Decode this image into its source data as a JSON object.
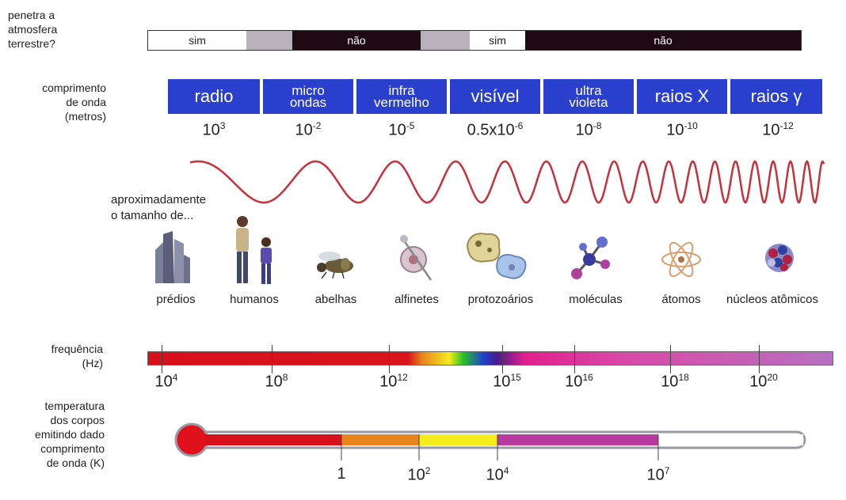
{
  "atmosphere": {
    "label_lines": [
      "penetra a",
      "atmosfera",
      "terrestre?"
    ],
    "segments": [
      {
        "text": "sim",
        "color": "#ffffff",
        "text_color": "#222222"
      },
      {
        "text": "",
        "color": "#b8b0ba",
        "text_color": "#222222"
      },
      {
        "text": "não",
        "color": "#1e0a12",
        "text_color": "#ffffff"
      },
      {
        "text": "",
        "color": "#b8b0ba",
        "text_color": "#222222"
      },
      {
        "text": "sim",
        "color": "#ffffff",
        "text_color": "#222222"
      },
      {
        "text": "não",
        "color": "#1e0a12",
        "text_color": "#ffffff"
      }
    ]
  },
  "wavelength": {
    "label_lines": [
      "comprimento",
      "de onda",
      "(metros)"
    ],
    "bands": [
      {
        "lines": [
          "radio"
        ]
      },
      {
        "lines": [
          "micro",
          "ondas"
        ]
      },
      {
        "lines": [
          "infra",
          "vermelho"
        ]
      },
      {
        "lines": [
          "visível"
        ]
      },
      {
        "lines": [
          "ultra",
          "violeta"
        ]
      },
      {
        "lines": [
          "raios X"
        ]
      },
      {
        "lines": [
          "raios γ"
        ]
      }
    ],
    "values": [
      {
        "base": "10",
        "exp": "3"
      },
      {
        "base": "10",
        "exp": "-2"
      },
      {
        "base": "10",
        "exp": "-5"
      },
      {
        "base": "0.5x10",
        "exp": "-6"
      },
      {
        "base": "10",
        "exp": "-8"
      },
      {
        "base": "10",
        "exp": "-10"
      },
      {
        "base": "10",
        "exp": "-12"
      }
    ],
    "band_color": "#2b3fcf",
    "wave_color": "#c8303a"
  },
  "size": {
    "label_lines": [
      "aproximadamente",
      "o tamanho de..."
    ],
    "objects": [
      {
        "label": "prédios",
        "icon": "buildings-icon"
      },
      {
        "label": "humanos",
        "icon": "humans-icon"
      },
      {
        "label": "abelhas",
        "icon": "bee-icon"
      },
      {
        "label": "alfinetes",
        "icon": "pin-icon"
      },
      {
        "label": "protozoários",
        "icon": "protozoa-icon"
      },
      {
        "label": "moléculas",
        "icon": "molecule-icon"
      },
      {
        "label": "átomos",
        "icon": "atom-icon"
      },
      {
        "label": "núcleos atômicos",
        "icon": "nucleus-icon"
      }
    ]
  },
  "frequency": {
    "label_lines": [
      "frequência",
      "(Hz)"
    ],
    "ticks": [
      {
        "base": "10",
        "exp": "4"
      },
      {
        "base": "10",
        "exp": "8"
      },
      {
        "base": "10",
        "exp": "12"
      },
      {
        "base": "10",
        "exp": "15"
      },
      {
        "base": "10",
        "exp": "16"
      },
      {
        "base": "10",
        "exp": "18"
      },
      {
        "base": "10",
        "exp": "20"
      }
    ]
  },
  "temperature": {
    "label_lines": [
      "temperatura",
      "dos corpos",
      "emitindo dado",
      "comprimento",
      "de onda (K)"
    ],
    "ticks": [
      {
        "base": "1",
        "exp": ""
      },
      {
        "base": "10",
        "exp": "2"
      },
      {
        "base": "10",
        "exp": "4"
      },
      {
        "base": "10",
        "exp": "7"
      }
    ],
    "segment_colors": [
      "#d8101c",
      "#e8841c",
      "#f4ec1c",
      "#b83aa0",
      "#ffffff"
    ]
  }
}
